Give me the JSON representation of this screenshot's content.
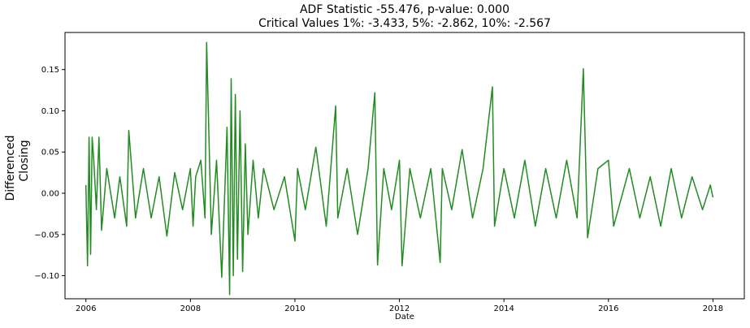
{
  "chart_data": {
    "type": "line",
    "title": "ADF Statistic -55.476, p-value: 0.000",
    "subtitle": "Critical Values 1%: -3.433, 5%: -2.862, 10%: -2.567",
    "xlabel": "Date",
    "ylabel": [
      "Differenced",
      "Closing"
    ],
    "xlim": [
      2005.6,
      2018.6
    ],
    "ylim": [
      -0.128,
      0.195
    ],
    "x_ticks": [
      2006,
      2008,
      2010,
      2012,
      2014,
      2016,
      2018
    ],
    "x_tick_labels": [
      "2006",
      "2008",
      "2010",
      "2012",
      "2014",
      "2016",
      "2018"
    ],
    "y_ticks": [
      -0.1,
      -0.05,
      0.0,
      0.05,
      0.1,
      0.15
    ],
    "y_tick_labels": [
      "−0.10",
      "−0.05",
      "0.00",
      "0.05",
      "0.10",
      "0.15"
    ],
    "grid": false,
    "series": [
      {
        "color": "#228b22",
        "x": [
          2006.0,
          2006.03,
          2006.06,
          2006.09,
          2006.12,
          2006.15,
          2006.2,
          2006.25,
          2006.3,
          2006.4,
          2006.55,
          2006.65,
          2006.78,
          2006.82,
          2006.95,
          2007.1,
          2007.25,
          2007.4,
          2007.55,
          2007.7,
          2007.85,
          2008.0,
          2008.05,
          2008.1,
          2008.2,
          2008.28,
          2008.31,
          2008.4,
          2008.5,
          2008.6,
          2008.7,
          2008.75,
          2008.78,
          2008.82,
          2008.86,
          2008.9,
          2008.95,
          2009.0,
          2009.05,
          2009.1,
          2009.2,
          2009.3,
          2009.4,
          2009.6,
          2009.8,
          2010.0,
          2010.05,
          2010.2,
          2010.4,
          2010.6,
          2010.78,
          2010.82,
          2011.0,
          2011.2,
          2011.4,
          2011.53,
          2011.58,
          2011.7,
          2011.85,
          2012.0,
          2012.05,
          2012.2,
          2012.4,
          2012.6,
          2012.78,
          2012.82,
          2013.0,
          2013.2,
          2013.4,
          2013.6,
          2013.78,
          2013.82,
          2014.0,
          2014.2,
          2014.4,
          2014.6,
          2014.8,
          2015.0,
          2015.2,
          2015.4,
          2015.52,
          2015.6,
          2015.8,
          2016.0,
          2016.1,
          2016.4,
          2016.6,
          2016.8,
          2017.0,
          2017.2,
          2017.4,
          2017.6,
          2017.8,
          2017.95,
          2018.0
        ],
        "y": [
          0.01,
          -0.088,
          0.068,
          -0.074,
          0.068,
          0.04,
          -0.02,
          0.068,
          -0.045,
          0.03,
          -0.03,
          0.02,
          -0.04,
          0.076,
          -0.03,
          0.03,
          -0.03,
          0.02,
          -0.052,
          0.025,
          -0.02,
          0.03,
          -0.04,
          0.02,
          0.04,
          -0.03,
          0.183,
          -0.05,
          0.04,
          -0.102,
          0.08,
          -0.123,
          0.139,
          -0.1,
          0.12,
          -0.08,
          0.1,
          -0.095,
          0.06,
          -0.05,
          0.04,
          -0.03,
          0.03,
          -0.02,
          0.02,
          -0.058,
          0.03,
          -0.02,
          0.056,
          -0.04,
          0.106,
          -0.03,
          0.03,
          -0.05,
          0.03,
          0.122,
          -0.087,
          0.03,
          -0.02,
          0.04,
          -0.088,
          0.03,
          -0.03,
          0.03,
          -0.084,
          0.03,
          -0.02,
          0.053,
          -0.03,
          0.03,
          0.129,
          -0.04,
          0.03,
          -0.03,
          0.04,
          -0.04,
          0.03,
          -0.03,
          0.04,
          -0.03,
          0.151,
          -0.054,
          0.03,
          0.04,
          -0.04,
          0.03,
          -0.03,
          0.02,
          -0.04,
          0.03,
          -0.03,
          0.02,
          -0.02,
          0.01,
          -0.005
        ]
      }
    ]
  }
}
